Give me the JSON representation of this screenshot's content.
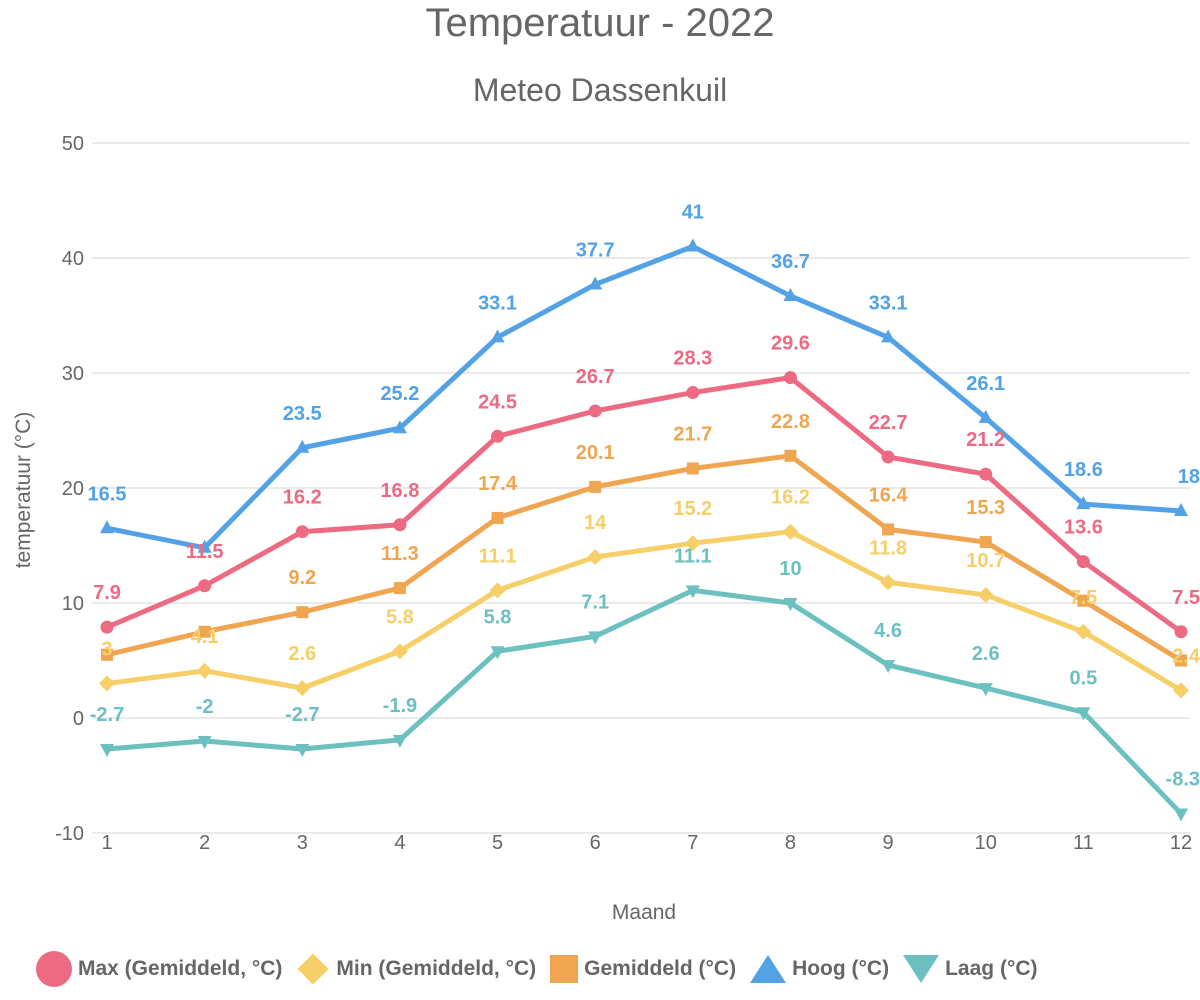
{
  "chart_data": {
    "type": "line",
    "title": "Temperatuur - 2022",
    "subtitle": "Meteo Dassenkuil",
    "xlabel": "Maand",
    "ylabel": "temperatuur (°C)",
    "x": [
      "1",
      "2",
      "3",
      "4",
      "5",
      "6",
      "7",
      "8",
      "9",
      "10",
      "11",
      "12"
    ],
    "ylim": [
      -10,
      50
    ],
    "yticks": [
      "-10",
      "0",
      "10",
      "20",
      "30",
      "40",
      "50"
    ],
    "grid": "horizontal",
    "legend_position": "bottom",
    "series": [
      {
        "name": "Max (Gemiddeld, °C)",
        "color": "#ec6a82",
        "marker": "circle",
        "values": [
          7.9,
          11.5,
          16.2,
          16.8,
          24.5,
          26.7,
          28.3,
          29.6,
          22.7,
          21.2,
          13.6,
          7.5
        ],
        "labels": [
          "7.9",
          "11.5",
          "16.2",
          "16.8",
          "24.5",
          "26.7",
          "28.3",
          "29.6",
          "22.7",
          "21.2",
          "13.6",
          "7.5"
        ]
      },
      {
        "name": "Min (Gemiddeld, °C)",
        "color": "#f6cf68",
        "marker": "diamond",
        "values": [
          3,
          4.1,
          2.6,
          5.8,
          11.1,
          14,
          15.2,
          16.2,
          11.8,
          10.7,
          7.5,
          2.4
        ],
        "labels": [
          "3",
          "4.1",
          "2.6",
          "5.8",
          "11.1",
          "14",
          "15.2",
          "16.2",
          "11.8",
          "10.7",
          "7.5",
          "2.4"
        ]
      },
      {
        "name": "Gemiddeld (°C)",
        "color": "#f0a550",
        "marker": "square",
        "values": [
          5.5,
          7.5,
          9.2,
          11.3,
          17.4,
          20.1,
          21.7,
          22.8,
          16.4,
          15.3,
          10.2,
          5
        ],
        "labels": [
          "",
          "",
          "9.2",
          "11.3",
          "17.4",
          "20.1",
          "21.7",
          "22.8",
          "16.4",
          "15.3",
          "",
          ""
        ]
      },
      {
        "name": "Hoog (°C)",
        "color": "#52a2e5",
        "marker": "triangle-up",
        "values": [
          16.5,
          14.8,
          23.5,
          25.2,
          33.1,
          37.7,
          41,
          36.7,
          33.1,
          26.1,
          18.6,
          18
        ],
        "labels": [
          "16.5",
          "",
          "23.5",
          "25.2",
          "33.1",
          "37.7",
          "41",
          "36.7",
          "33.1",
          "26.1",
          "18.6",
          "18"
        ]
      },
      {
        "name": "Laag (°C)",
        "color": "#6dc0c0",
        "marker": "triangle-down",
        "values": [
          -2.7,
          -2,
          -2.7,
          -1.9,
          5.8,
          7.1,
          11.1,
          10,
          4.6,
          2.6,
          0.5,
          -8.3
        ],
        "labels": [
          "-2.7",
          "-2",
          "-2.7",
          "-1.9",
          "5.8",
          "7.1",
          "11.1",
          "10",
          "4.6",
          "2.6",
          "0.5",
          "-8.3"
        ]
      }
    ]
  }
}
